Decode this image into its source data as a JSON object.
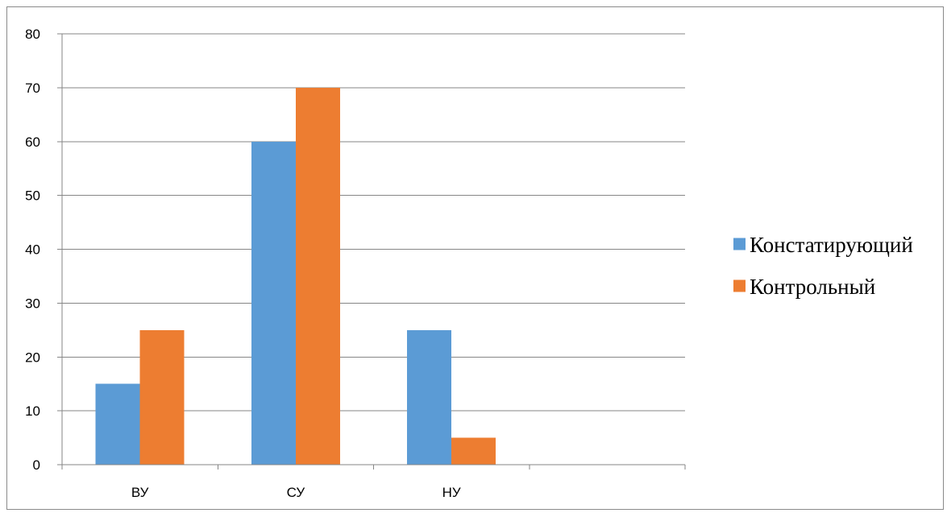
{
  "chart_data": {
    "type": "bar",
    "categories": [
      "ВУ",
      "СУ",
      "НУ",
      ""
    ],
    "series": [
      {
        "name": "Констатирующий",
        "values": [
          15,
          60,
          25,
          null
        ],
        "color": "#5B9BD5"
      },
      {
        "name": "Контрольный",
        "values": [
          25,
          70,
          5,
          null
        ],
        "color": "#ED7D31"
      }
    ],
    "title": "",
    "xlabel": "",
    "ylabel": "",
    "ylim": [
      0,
      80
    ],
    "yticks": [
      0,
      10,
      20,
      30,
      40,
      50,
      60,
      70,
      80
    ],
    "grid": true,
    "legend_position": "right"
  }
}
